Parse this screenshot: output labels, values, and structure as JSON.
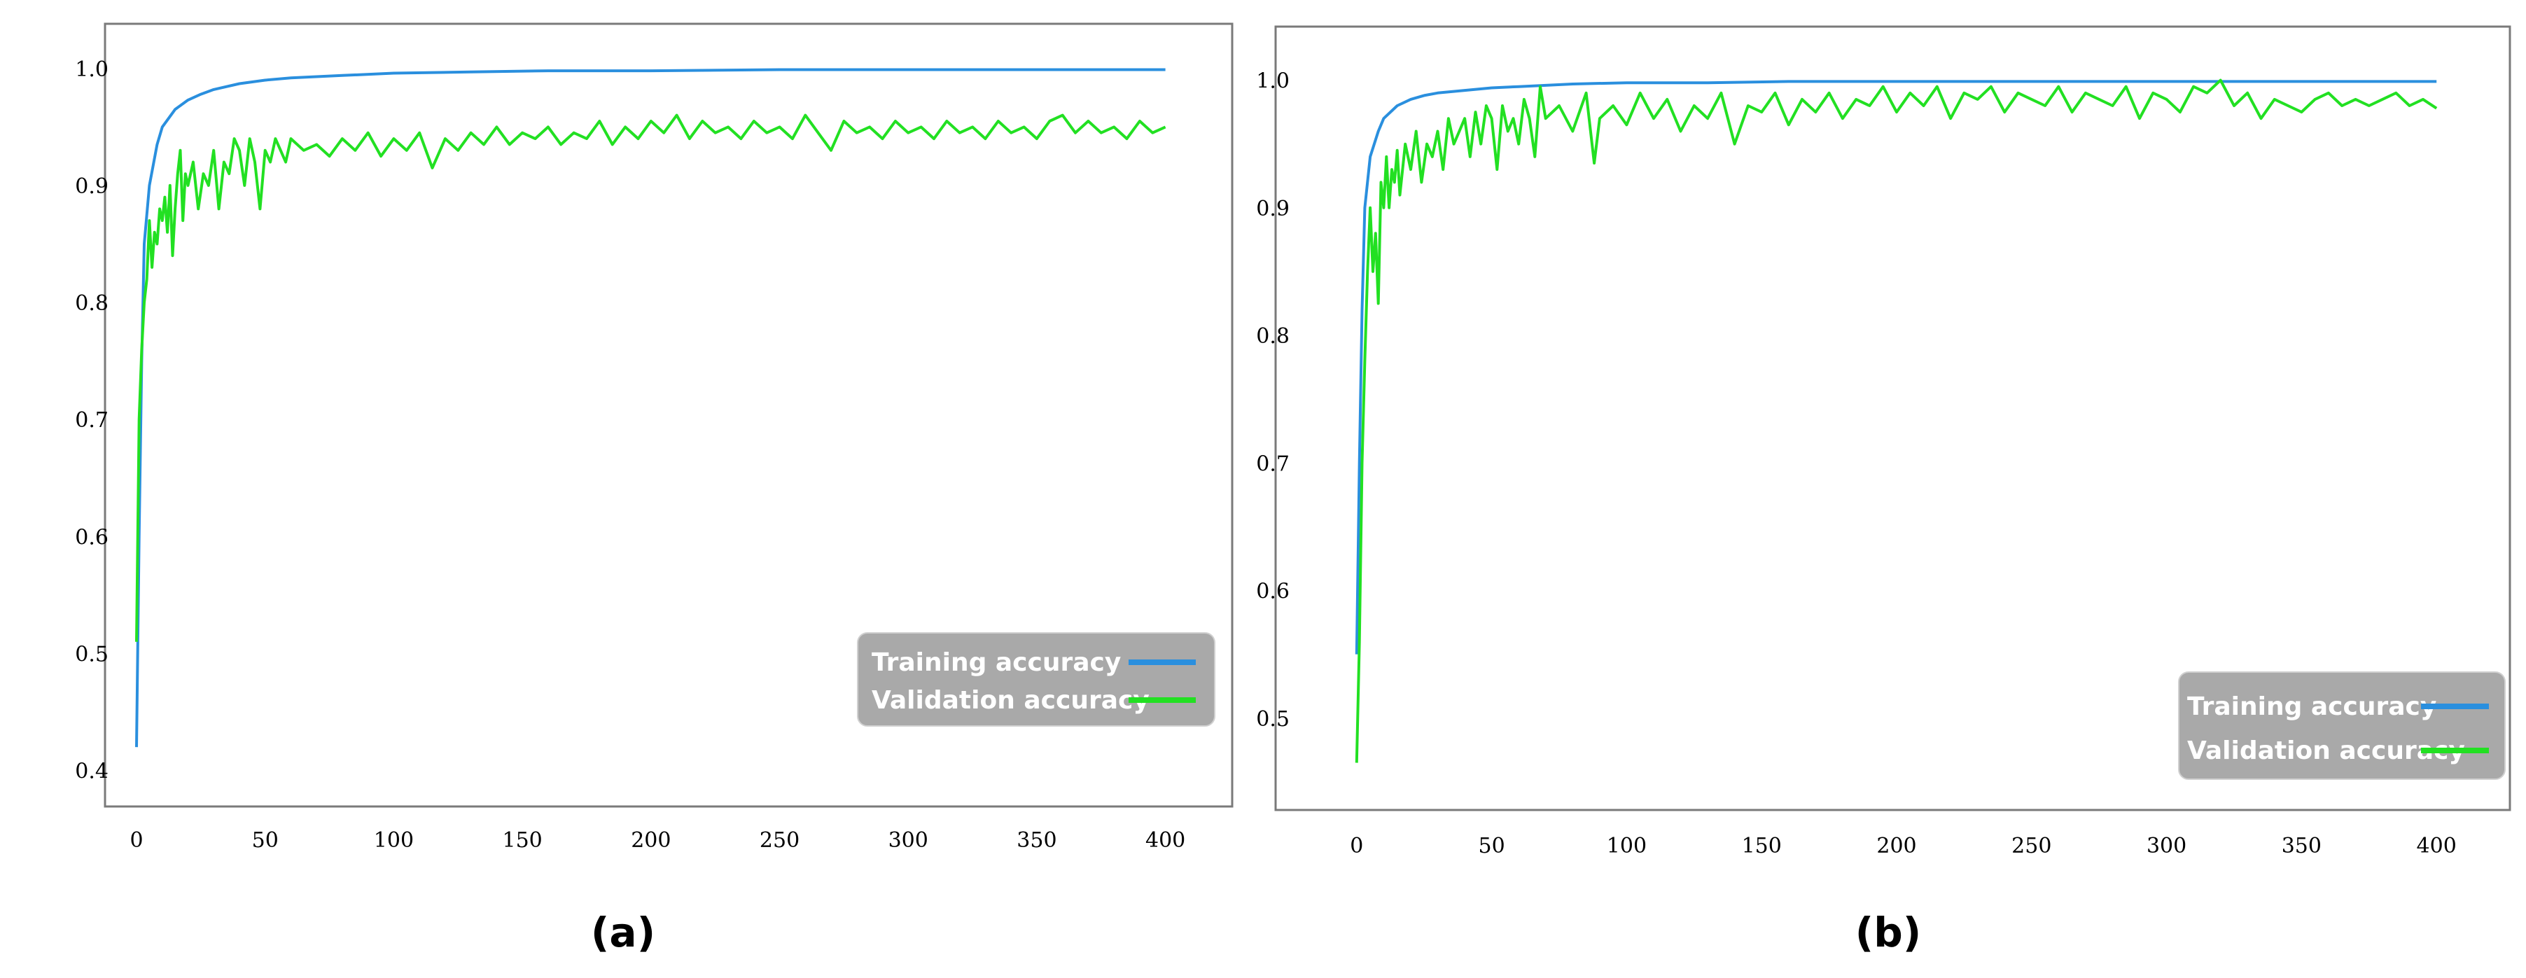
{
  "colors": {
    "training": "#2a8fde",
    "validation": "#22e022",
    "legend_bg": "#a9a9a9",
    "frame": "#7a7a7a"
  },
  "chart_data": [
    {
      "type": "line",
      "panel_label": "(a)",
      "title": "",
      "xlabel": "",
      "ylabel": "",
      "xlim": [
        -3,
        405
      ],
      "ylim": [
        0.395,
        1.025
      ],
      "xticks": [
        0,
        50,
        100,
        150,
        200,
        250,
        300,
        350,
        400
      ],
      "yticks": [
        0.4,
        0.5,
        0.6,
        0.7,
        0.8,
        0.9,
        1.0
      ],
      "ytick_labels": [
        "0.4",
        "0.5",
        "0.6",
        "0.7",
        "0.8",
        "0.9",
        "1.0"
      ],
      "legend": {
        "position": "lower-right",
        "entries": [
          "Training accuracy",
          "Validation accuracy"
        ]
      },
      "series": [
        {
          "name": "Training accuracy",
          "x": [
            0,
            1,
            2,
            3,
            5,
            8,
            10,
            15,
            20,
            25,
            30,
            40,
            50,
            60,
            80,
            100,
            130,
            160,
            200,
            250,
            300,
            350,
            400
          ],
          "y": [
            0.42,
            0.6,
            0.75,
            0.85,
            0.9,
            0.935,
            0.95,
            0.965,
            0.973,
            0.978,
            0.982,
            0.987,
            0.99,
            0.992,
            0.994,
            0.996,
            0.997,
            0.998,
            0.998,
            0.999,
            0.999,
            0.999,
            0.999
          ]
        },
        {
          "name": "Validation accuracy",
          "x": [
            0,
            1,
            2,
            3,
            4,
            5,
            6,
            7,
            8,
            9,
            10,
            11,
            12,
            13,
            14,
            15,
            16,
            17,
            18,
            19,
            20,
            22,
            24,
            26,
            28,
            30,
            32,
            34,
            36,
            38,
            40,
            42,
            44,
            46,
            48,
            50,
            52,
            54,
            56,
            58,
            60,
            65,
            70,
            75,
            80,
            85,
            90,
            95,
            100,
            105,
            110,
            115,
            120,
            125,
            130,
            135,
            140,
            145,
            150,
            155,
            160,
            165,
            170,
            175,
            180,
            185,
            190,
            195,
            200,
            205,
            210,
            215,
            220,
            225,
            230,
            235,
            240,
            245,
            250,
            255,
            260,
            265,
            270,
            275,
            280,
            285,
            290,
            295,
            300,
            305,
            310,
            315,
            320,
            325,
            330,
            335,
            340,
            345,
            350,
            355,
            360,
            365,
            370,
            375,
            380,
            385,
            390,
            395,
            400
          ],
          "y": [
            0.51,
            0.7,
            0.76,
            0.8,
            0.82,
            0.87,
            0.83,
            0.86,
            0.85,
            0.88,
            0.87,
            0.89,
            0.86,
            0.9,
            0.84,
            0.88,
            0.91,
            0.93,
            0.87,
            0.91,
            0.9,
            0.92,
            0.88,
            0.91,
            0.9,
            0.93,
            0.88,
            0.92,
            0.91,
            0.94,
            0.93,
            0.9,
            0.94,
            0.92,
            0.88,
            0.93,
            0.92,
            0.94,
            0.93,
            0.92,
            0.94,
            0.93,
            0.935,
            0.925,
            0.94,
            0.93,
            0.945,
            0.925,
            0.94,
            0.93,
            0.945,
            0.915,
            0.94,
            0.93,
            0.945,
            0.935,
            0.95,
            0.935,
            0.945,
            0.94,
            0.95,
            0.935,
            0.945,
            0.94,
            0.955,
            0.935,
            0.95,
            0.94,
            0.955,
            0.945,
            0.96,
            0.94,
            0.955,
            0.945,
            0.95,
            0.94,
            0.955,
            0.945,
            0.95,
            0.94,
            0.96,
            0.945,
            0.93,
            0.955,
            0.945,
            0.95,
            0.94,
            0.955,
            0.945,
            0.95,
            0.94,
            0.955,
            0.945,
            0.95,
            0.94,
            0.955,
            0.945,
            0.95,
            0.94,
            0.955,
            0.96,
            0.945,
            0.955,
            0.945,
            0.95,
            0.94,
            0.955,
            0.945,
            0.95
          ]
        }
      ]
    },
    {
      "type": "line",
      "panel_label": "(b)",
      "title": "",
      "xlabel": "",
      "ylabel": "",
      "xlim": [
        -15,
        408
      ],
      "ylim": [
        0.445,
        1.025
      ],
      "xticks": [
        0,
        50,
        100,
        150,
        200,
        250,
        300,
        350,
        400
      ],
      "yticks": [
        0.5,
        0.6,
        0.7,
        0.8,
        0.9,
        1.0
      ],
      "ytick_labels": [
        "0.5",
        "0.6",
        "0.7",
        "0.8",
        "0.9",
        "1.0"
      ],
      "legend": {
        "position": "lower-right",
        "entries": [
          "Training accuracy",
          "Validation accuracy"
        ]
      },
      "series": [
        {
          "name": "Training accuracy",
          "x": [
            0,
            1,
            2,
            3,
            5,
            8,
            10,
            15,
            20,
            25,
            30,
            40,
            50,
            60,
            80,
            100,
            130,
            160,
            200,
            250,
            300,
            350,
            400
          ],
          "y": [
            0.55,
            0.7,
            0.82,
            0.9,
            0.94,
            0.96,
            0.97,
            0.98,
            0.985,
            0.988,
            0.99,
            0.992,
            0.994,
            0.995,
            0.997,
            0.998,
            0.998,
            0.999,
            0.999,
            0.999,
            0.999,
            0.999,
            0.999
          ]
        },
        {
          "name": "Validation accuracy",
          "x": [
            0,
            1,
            2,
            3,
            4,
            5,
            6,
            7,
            8,
            9,
            10,
            11,
            12,
            13,
            14,
            15,
            16,
            18,
            20,
            22,
            24,
            26,
            28,
            30,
            32,
            34,
            36,
            38,
            40,
            42,
            44,
            46,
            48,
            50,
            52,
            54,
            56,
            58,
            60,
            62,
            64,
            66,
            68,
            70,
            75,
            80,
            85,
            88,
            90,
            95,
            100,
            105,
            110,
            115,
            120,
            125,
            130,
            135,
            140,
            145,
            150,
            155,
            160,
            165,
            170,
            175,
            180,
            185,
            190,
            195,
            200,
            205,
            210,
            215,
            220,
            225,
            230,
            235,
            240,
            245,
            250,
            255,
            260,
            265,
            270,
            275,
            280,
            285,
            290,
            295,
            300,
            305,
            310,
            315,
            320,
            325,
            330,
            335,
            340,
            345,
            350,
            355,
            360,
            365,
            370,
            375,
            380,
            385,
            390,
            395,
            400
          ],
          "y": [
            0.465,
            0.56,
            0.7,
            0.78,
            0.85,
            0.9,
            0.85,
            0.88,
            0.825,
            0.92,
            0.9,
            0.94,
            0.9,
            0.93,
            0.92,
            0.945,
            0.91,
            0.95,
            0.93,
            0.96,
            0.92,
            0.95,
            0.94,
            0.96,
            0.93,
            0.97,
            0.95,
            0.96,
            0.97,
            0.94,
            0.975,
            0.95,
            0.98,
            0.97,
            0.93,
            0.98,
            0.96,
            0.97,
            0.95,
            0.985,
            0.97,
            0.94,
            0.995,
            0.97,
            0.98,
            0.96,
            0.99,
            0.935,
            0.97,
            0.98,
            0.965,
            0.99,
            0.97,
            0.985,
            0.96,
            0.98,
            0.97,
            0.99,
            0.95,
            0.98,
            0.975,
            0.99,
            0.965,
            0.985,
            0.975,
            0.99,
            0.97,
            0.985,
            0.98,
            0.995,
            0.975,
            0.99,
            0.98,
            0.995,
            0.97,
            0.99,
            0.985,
            0.995,
            0.975,
            0.99,
            0.985,
            0.98,
            0.995,
            0.975,
            0.99,
            0.985,
            0.98,
            0.995,
            0.97,
            0.99,
            0.985,
            0.975,
            0.995,
            0.99,
            1.0,
            0.98,
            0.99,
            0.97,
            0.985,
            0.98,
            0.975,
            0.985,
            0.99,
            0.98,
            0.985,
            0.98,
            0.985,
            0.99,
            0.98,
            0.985,
            0.978
          ]
        }
      ]
    }
  ]
}
